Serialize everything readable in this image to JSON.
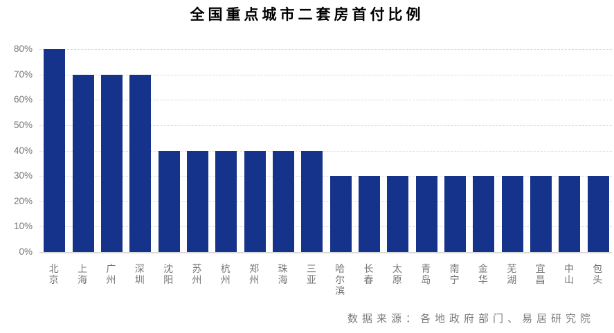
{
  "chart_data": {
    "type": "bar",
    "title": "全国重点城市二套房首付比例",
    "categories": [
      "北京",
      "上海",
      "广州",
      "深圳",
      "沈阳",
      "苏州",
      "杭州",
      "郑州",
      "珠海",
      "三亚",
      "哈尔滨",
      "长春",
      "太原",
      "青岛",
      "南宁",
      "金华",
      "芜湖",
      "宜昌",
      "中山",
      "包头"
    ],
    "values": [
      80,
      70,
      70,
      70,
      40,
      40,
      40,
      40,
      40,
      40,
      30,
      30,
      30,
      30,
      30,
      30,
      30,
      30,
      30,
      30
    ],
    "value_unit": "%",
    "xlabel": "",
    "ylabel": "",
    "ylim": [
      0,
      80
    ],
    "ytick_values": [
      0,
      10,
      20,
      30,
      40,
      50,
      60,
      70,
      80
    ],
    "ytick_labels": [
      "0%",
      "10%",
      "20%",
      "30%",
      "40%",
      "50%",
      "60%",
      "70%",
      "80%"
    ],
    "grid": "horizontal-dashed",
    "legend": "none",
    "source_note": "数据来源：各地政府部门、易居研究院"
  },
  "colors": {
    "bar": "#15338B",
    "gridline": "#d9d9d9",
    "axis_text": "#767676",
    "title_text": "#000000",
    "background": "#ffffff"
  }
}
